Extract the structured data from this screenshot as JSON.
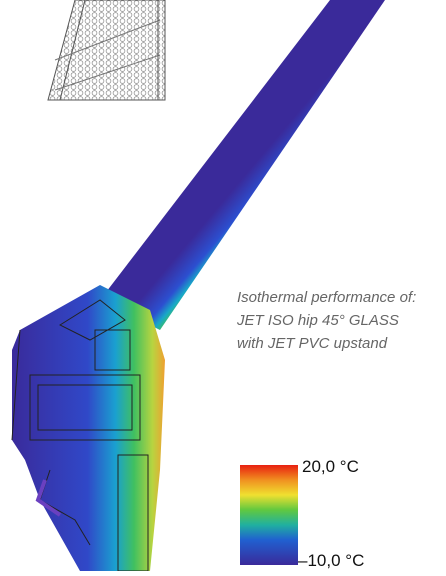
{
  "caption": {
    "lines": [
      "Isothermal performance of:",
      "JET ISO hip 45° GLASS",
      "with JET PVC upstand"
    ]
  },
  "legend": {
    "max_label": "20,0 °C",
    "min_label": "–10,0 °C"
  }
}
